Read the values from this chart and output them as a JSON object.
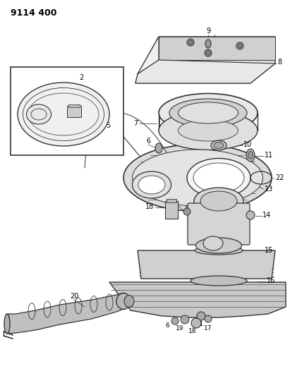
{
  "title": "9114 400",
  "bg_color": "#ffffff",
  "line_color": "#333333",
  "title_fontsize": 9,
  "label_fontsize": 7,
  "fig_width": 4.11,
  "fig_height": 5.33,
  "dpi": 100
}
